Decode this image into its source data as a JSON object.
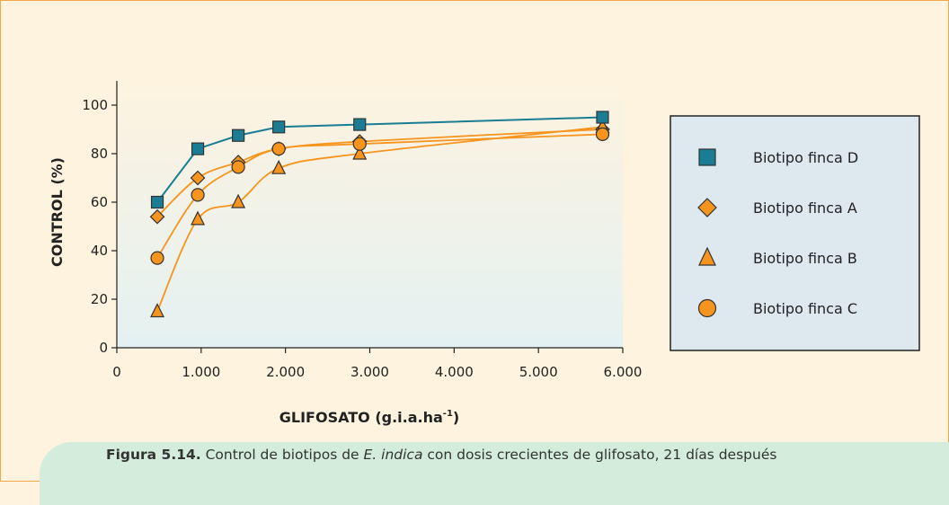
{
  "colors": {
    "background": "#fdf3df",
    "border": "#f0a84a",
    "series_D": "#1a7d94",
    "series_orange": "#f7941d",
    "legend_bg": "#dde9ee",
    "caption_bg": "#d4ecdb"
  },
  "caption": {
    "label": "Figura 5.14.",
    "text_before": " Control de biotipos de ",
    "species": "E. indica",
    "text_after": " con dosis crecientes de glifosato, 21 días después"
  },
  "chart_data": {
    "type": "line",
    "xlabel": "GLIFOSATO (g.i.a.ha",
    "xlabel_sup": "-1",
    "xlabel_end": ")",
    "ylabel": "CONTROL (%)",
    "xlim": [
      0,
      6000
    ],
    "ylim": [
      0,
      100
    ],
    "x_ticks": [
      0,
      1000,
      2000,
      3000,
      4000,
      5000,
      6000
    ],
    "x_tick_labels": [
      "0",
      "1.000",
      "2.000",
      "3.000",
      "4.000",
      "5.000",
      "6.000"
    ],
    "y_ticks": [
      0,
      20,
      40,
      60,
      80,
      100
    ],
    "y_tick_labels": [
      "0",
      "20",
      "40",
      "60",
      "80",
      "100"
    ],
    "x": [
      480,
      960,
      1440,
      1920,
      2880,
      5760
    ],
    "legend_position": "right",
    "series": [
      {
        "name": "Biotipo finca D",
        "marker": "square",
        "color": "#1a7d94",
        "values": [
          60,
          82,
          87.5,
          91,
          92,
          95
        ]
      },
      {
        "name": "Biotipo finca A",
        "marker": "diamond",
        "color": "#f7941d",
        "values": [
          54,
          70,
          76.5,
          82,
          85,
          90
        ]
      },
      {
        "name": "Biotipo finca B",
        "marker": "triangle",
        "color": "#f7941d",
        "values": [
          15,
          53,
          60,
          74,
          80,
          91
        ]
      },
      {
        "name": "Biotipo finca C",
        "marker": "circle",
        "color": "#f7941d",
        "values": [
          37,
          63,
          74.5,
          82,
          84,
          88
        ]
      }
    ]
  }
}
